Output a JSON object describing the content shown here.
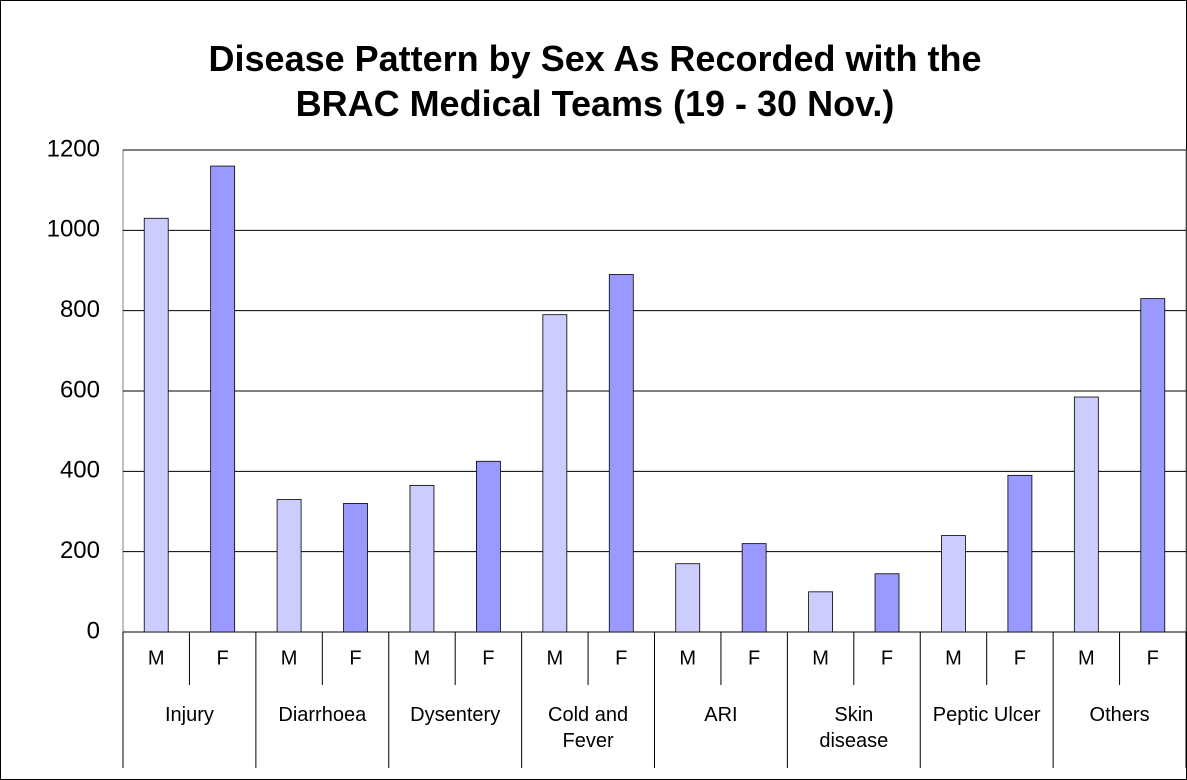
{
  "chart_data": {
    "type": "bar",
    "title": "Disease Pattern by Sex As Recorded with the BRAC Medical Teams (19 - 30 Nov.)",
    "categories": [
      "Injury",
      "Diarrhoea",
      "Dysentery",
      "Cold and Fever",
      "ARI",
      "Skin disease",
      "Peptic Ulcer",
      "Others"
    ],
    "series": [
      {
        "name": "M",
        "color": "#ccccff",
        "values": [
          1030,
          330,
          365,
          790,
          170,
          100,
          240,
          585
        ]
      },
      {
        "name": "F",
        "color": "#9999ff",
        "values": [
          1160,
          320,
          425,
          890,
          220,
          145,
          390,
          830
        ]
      }
    ],
    "ylim": [
      0,
      1200
    ],
    "yticks": [
      0,
      200,
      400,
      600,
      800,
      1000,
      1200
    ],
    "grid": true
  }
}
